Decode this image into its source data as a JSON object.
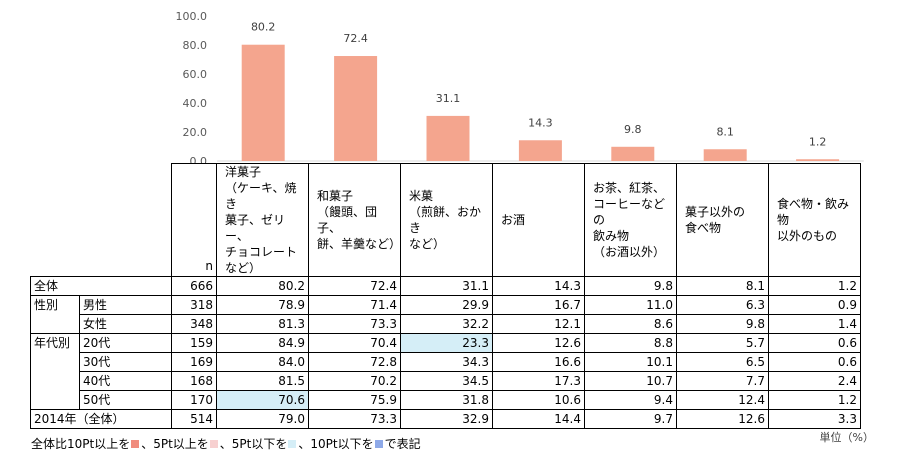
{
  "chart_data": {
    "type": "bar",
    "categories": [
      [
        "洋菓子",
        "（ケーキ、焼き",
        "菓子、ゼリー、",
        "チョコレートなど）"
      ],
      [
        "和菓子",
        "（饅頭、団子、",
        "餅、羊羹など）"
      ],
      [
        "米菓",
        "（煎餅、おかき",
        "など）"
      ],
      [
        "お酒"
      ],
      [
        "お茶、紅茶、",
        "コーヒーなどの",
        "飲み物",
        "（お酒以外）"
      ],
      [
        "菓子以外の",
        "食べ物"
      ],
      [
        "食べ物・飲み物",
        "以外のもの"
      ]
    ],
    "values": [
      80.2,
      72.4,
      31.1,
      14.3,
      9.8,
      8.1,
      1.2
    ],
    "value_labels": [
      "80.2",
      "72.4",
      "31.1",
      "14.3",
      "9.8",
      "8.1",
      "1.2"
    ],
    "ylim": [
      0,
      100
    ],
    "yticks": [
      "100.0",
      "80.0",
      "60.0",
      "40.0",
      "20.0",
      "0.0"
    ],
    "ytick_values": [
      100,
      80,
      60,
      40,
      20,
      0
    ],
    "bar_color": "#f4a58e",
    "grid": false
  },
  "table": {
    "n_header": "n",
    "rows": [
      {
        "group": "全体",
        "sub": "",
        "n": "666",
        "values": [
          "80.2",
          "72.4",
          "31.1",
          "14.3",
          "9.8",
          "8.1",
          "1.2"
        ],
        "hl": [
          null,
          null,
          null,
          null,
          null,
          null,
          null
        ]
      },
      {
        "group": "性別",
        "sub": "男性",
        "n": "318",
        "values": [
          "78.9",
          "71.4",
          "29.9",
          "16.7",
          "11.0",
          "6.3",
          "0.9"
        ],
        "hl": [
          null,
          null,
          null,
          null,
          null,
          null,
          null
        ]
      },
      {
        "group": "",
        "sub": "女性",
        "n": "348",
        "values": [
          "81.3",
          "73.3",
          "32.2",
          "12.1",
          "8.6",
          "9.8",
          "1.4"
        ],
        "hl": [
          null,
          null,
          null,
          null,
          null,
          null,
          null
        ]
      },
      {
        "group": "年代別",
        "sub": "20代",
        "n": "159",
        "values": [
          "84.9",
          "70.4",
          "23.3",
          "12.6",
          "8.8",
          "5.7",
          "0.6"
        ],
        "hl": [
          null,
          null,
          "low5",
          null,
          null,
          null,
          null
        ]
      },
      {
        "group": "",
        "sub": "30代",
        "n": "169",
        "values": [
          "84.0",
          "72.8",
          "34.3",
          "16.6",
          "10.1",
          "6.5",
          "0.6"
        ],
        "hl": [
          null,
          null,
          null,
          null,
          null,
          null,
          null
        ]
      },
      {
        "group": "",
        "sub": "40代",
        "n": "168",
        "values": [
          "81.5",
          "70.2",
          "34.5",
          "17.3",
          "10.7",
          "7.7",
          "2.4"
        ],
        "hl": [
          null,
          null,
          null,
          null,
          null,
          null,
          null
        ]
      },
      {
        "group": "",
        "sub": "50代",
        "n": "170",
        "values": [
          "70.6",
          "75.9",
          "31.8",
          "10.6",
          "9.4",
          "12.4",
          "1.2"
        ],
        "hl": [
          "low5",
          null,
          null,
          null,
          null,
          null,
          null
        ]
      },
      {
        "group": "2014年（全体）",
        "sub": "",
        "n": "514",
        "values": [
          "79.0",
          "73.3",
          "32.9",
          "14.4",
          "9.7",
          "12.6",
          "3.3"
        ],
        "hl": [
          null,
          null,
          null,
          null,
          null,
          null,
          null
        ]
      }
    ]
  },
  "legend": {
    "prefix": "全体比10Pt以上を",
    "items": [
      {
        "color": "#f08c7d",
        "text": "、5Pt以上を"
      },
      {
        "color": "#f7d0d0",
        "text": "、5Pt以下を"
      },
      {
        "color": "#d5eef7",
        "text": "、10Pt以下を"
      },
      {
        "color": "#8ea9e8",
        "text": "で表記"
      }
    ]
  },
  "unit": "単位（%）"
}
